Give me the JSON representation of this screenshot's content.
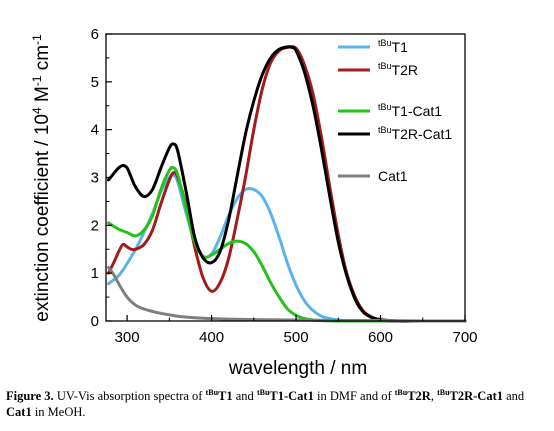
{
  "chart_data": {
    "type": "line",
    "xlabel": "wavelength / nm",
    "ylabel_parts": {
      "a": "extinction coefficient / 10",
      "b": "4",
      "c": " M",
      "d": "-1",
      "e": " cm",
      "f": "-1"
    },
    "xlim": [
      275,
      700
    ],
    "ylim": [
      0,
      6
    ],
    "xticks": [
      300,
      400,
      500,
      600,
      700
    ],
    "yticks": [
      0,
      1,
      2,
      3,
      4,
      5,
      6
    ],
    "xtick_labels": [
      "300",
      "400",
      "500",
      "600",
      "700"
    ],
    "ytick_labels": [
      "0",
      "1",
      "2",
      "3",
      "4",
      "5",
      "6"
    ],
    "grid": false,
    "legend_position": "top-right",
    "series": [
      {
        "name": "T1",
        "sup": "tBu",
        "color": "#5ab4ea",
        "x": [
          278,
          290,
          300,
          310,
          320,
          330,
          340,
          350,
          355,
          360,
          370,
          380,
          390,
          400,
          410,
          420,
          430,
          440,
          450,
          460,
          470,
          480,
          490,
          500,
          510,
          520,
          530,
          540,
          550,
          560,
          570,
          580,
          600,
          650,
          700
        ],
        "y": [
          0.78,
          0.95,
          1.2,
          1.5,
          1.85,
          2.25,
          2.7,
          3.0,
          3.05,
          2.9,
          2.25,
          1.65,
          1.35,
          1.4,
          1.75,
          2.2,
          2.55,
          2.75,
          2.75,
          2.6,
          2.25,
          1.75,
          1.2,
          0.75,
          0.42,
          0.22,
          0.1,
          0.05,
          0.02,
          0.01,
          0.01,
          0,
          0,
          0,
          0
        ]
      },
      {
        "name": "T2R",
        "sup": "tBu",
        "color": "#a31b1b",
        "x": [
          278,
          285,
          290,
          295,
          300,
          305,
          310,
          320,
          330,
          340,
          350,
          355,
          360,
          370,
          380,
          390,
          400,
          410,
          420,
          430,
          440,
          450,
          460,
          470,
          480,
          490,
          500,
          510,
          520,
          530,
          540,
          550,
          560,
          570,
          580,
          590,
          600,
          610,
          620,
          650,
          700
        ],
        "y": [
          1.0,
          1.25,
          1.45,
          1.6,
          1.55,
          1.5,
          1.5,
          1.6,
          1.9,
          2.45,
          2.95,
          3.1,
          3.0,
          2.4,
          1.55,
          0.9,
          0.62,
          0.8,
          1.3,
          2.1,
          3.0,
          4.0,
          4.85,
          5.4,
          5.65,
          5.72,
          5.7,
          5.35,
          4.75,
          3.85,
          2.8,
          1.8,
          1.0,
          0.5,
          0.2,
          0.08,
          0.03,
          0.01,
          0,
          0,
          0
        ]
      },
      {
        "name": "T1-Cat1",
        "sup": "tBu",
        "color": "#22c21a",
        "x": [
          278,
          290,
          300,
          310,
          320,
          330,
          340,
          350,
          355,
          360,
          370,
          380,
          390,
          400,
          410,
          420,
          430,
          440,
          450,
          460,
          470,
          480,
          490,
          500,
          510,
          520,
          530,
          550,
          600,
          700
        ],
        "y": [
          2.05,
          1.92,
          1.85,
          1.78,
          1.9,
          2.2,
          2.75,
          3.15,
          3.2,
          3.05,
          2.35,
          1.65,
          1.35,
          1.38,
          1.5,
          1.62,
          1.67,
          1.62,
          1.45,
          1.15,
          0.8,
          0.5,
          0.25,
          0.12,
          0.05,
          0.02,
          0.01,
          0,
          0,
          0
        ]
      },
      {
        "name": "T2R-Cat1",
        "sup": "tBu",
        "color": "#000000",
        "x": [
          278,
          285,
          290,
          295,
          300,
          305,
          310,
          320,
          330,
          340,
          350,
          355,
          360,
          370,
          380,
          390,
          400,
          410,
          420,
          430,
          440,
          450,
          460,
          470,
          480,
          490,
          495,
          500,
          510,
          520,
          530,
          540,
          550,
          560,
          570,
          580,
          590,
          600,
          620,
          650,
          700
        ],
        "y": [
          2.95,
          3.1,
          3.2,
          3.25,
          3.2,
          3.0,
          2.8,
          2.6,
          2.75,
          3.2,
          3.62,
          3.7,
          3.55,
          2.7,
          1.75,
          1.32,
          1.22,
          1.45,
          2.1,
          3.0,
          3.9,
          4.6,
          5.15,
          5.5,
          5.68,
          5.73,
          5.72,
          5.65,
          5.2,
          4.5,
          3.6,
          2.6,
          1.65,
          0.95,
          0.45,
          0.18,
          0.07,
          0.02,
          0,
          0,
          0
        ]
      },
      {
        "name": "Cat1",
        "sup": "",
        "color": "#7f7f7f",
        "x": [
          278,
          285,
          290,
          300,
          310,
          320,
          330,
          340,
          350,
          360,
          380,
          400,
          420,
          450,
          500,
          550,
          600,
          650,
          700
        ],
        "y": [
          1.12,
          0.95,
          0.78,
          0.5,
          0.33,
          0.25,
          0.2,
          0.16,
          0.13,
          0.1,
          0.07,
          0.05,
          0.04,
          0.03,
          0.02,
          0.01,
          0.01,
          0,
          0
        ]
      }
    ]
  },
  "caption": {
    "figure_label": "Figure 3.",
    "text1": " UV-Vis absorption spectra of ",
    "t1_sup": "tBu",
    "t1_name": "T1",
    "text2": " and ",
    "t1cat_sup": "tBu",
    "t1cat_name": "T1-Cat1",
    "text3": " in DMF and of ",
    "t2r_sup": "tBu",
    "t2r_name": "T2R",
    "text4": ", ",
    "t2rcat_sup": "tBu",
    "t2rcat_name": "T2R-Cat1",
    "text5": " and ",
    "cat1_name": "Cat1",
    "text6": " in MeOH."
  }
}
